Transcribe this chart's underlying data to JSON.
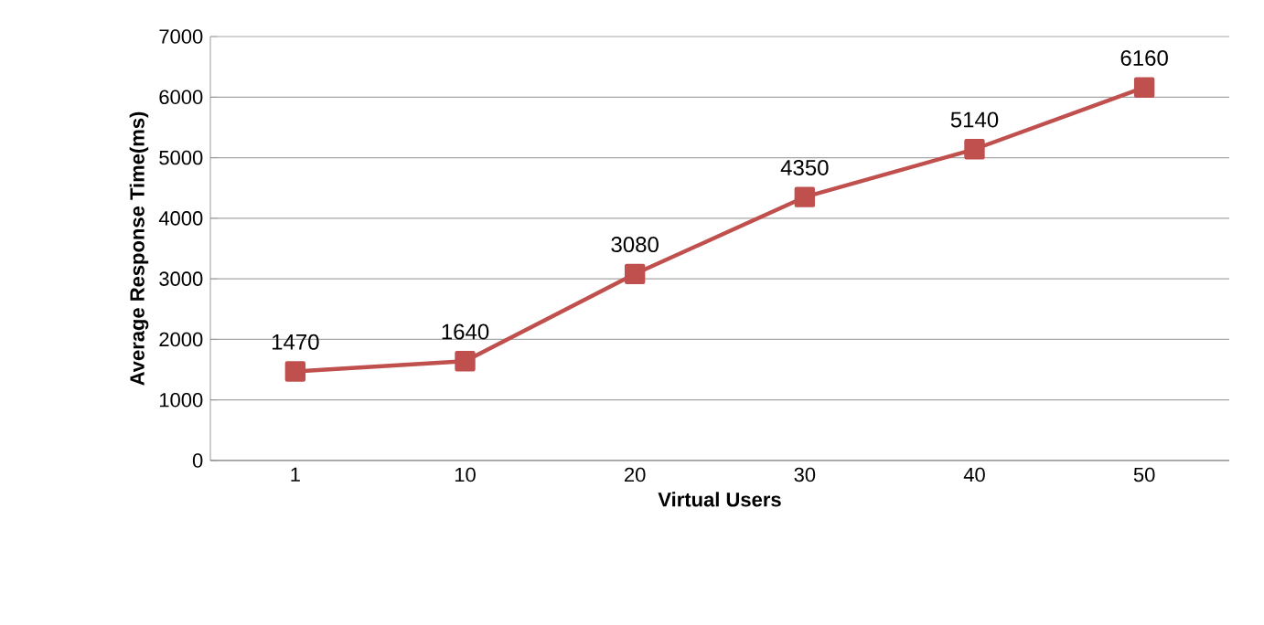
{
  "chart_data": {
    "type": "line",
    "xlabel": "Virtual Users",
    "ylabel": "Average Response Time(ms)",
    "categories": [
      "1",
      "10",
      "20",
      "30",
      "40",
      "50"
    ],
    "values": [
      1470,
      1640,
      3080,
      4350,
      5140,
      6160
    ],
    "color": "#c0504d",
    "marker": "square",
    "data_labels": true,
    "grid": "y",
    "ylim": [
      0,
      7000
    ],
    "yticks": [
      0,
      1000,
      2000,
      3000,
      4000,
      5000,
      6000,
      7000
    ]
  }
}
